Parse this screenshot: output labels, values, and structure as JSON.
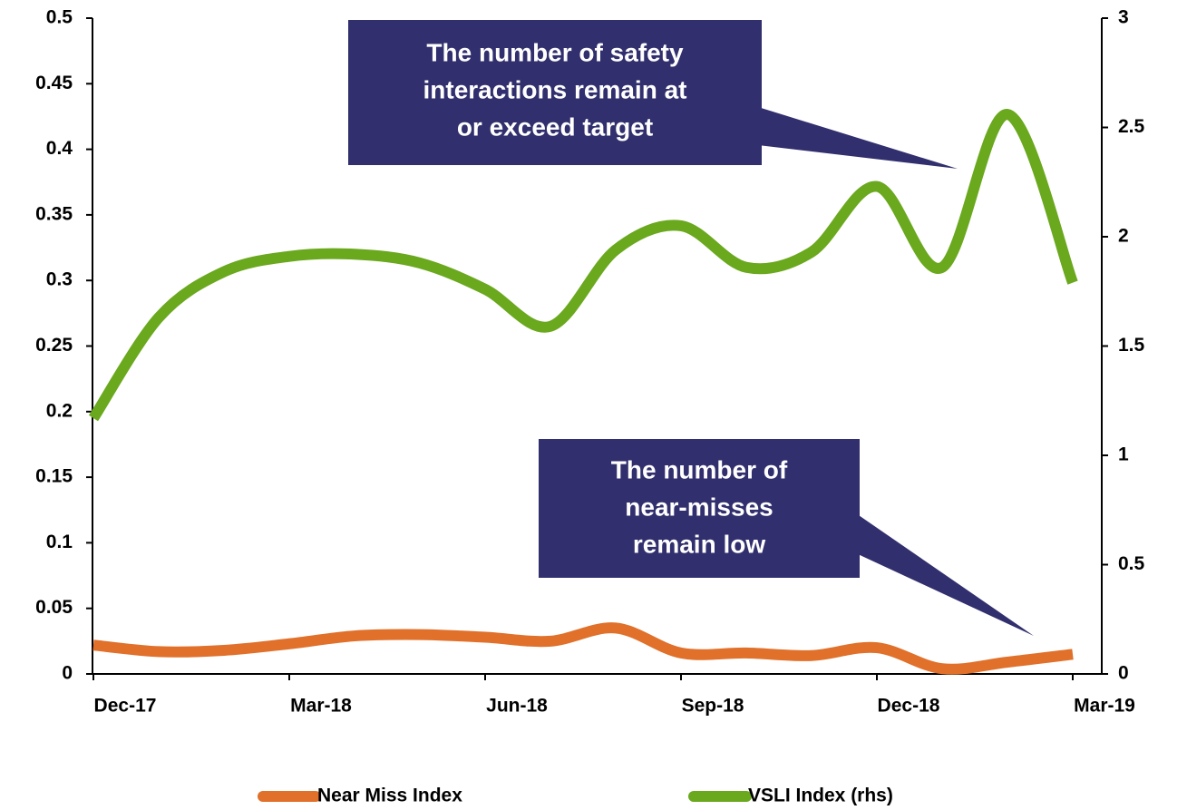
{
  "chart_data": {
    "type": "line",
    "categories": [
      "Dec-17",
      null,
      null,
      "Mar-18",
      null,
      null,
      "Jun-18",
      null,
      null,
      "Sep-18",
      null,
      null,
      "Dec-18",
      null,
      null,
      "Mar-19"
    ],
    "series": [
      {
        "name": "Near Miss Index",
        "color": "#e0702a",
        "axis": "y",
        "values": [
          0.022,
          0.017,
          0.018,
          0.023,
          0.029,
          0.03,
          0.028,
          0.025,
          0.035,
          0.016,
          0.016,
          0.014,
          0.02,
          0.004,
          0.009,
          0.015
        ]
      },
      {
        "name": "VSLI Index (rhs)",
        "color": "#6aa81e",
        "axis": "y2",
        "values": [
          1.17,
          1.63,
          1.84,
          1.91,
          1.92,
          1.88,
          1.76,
          1.59,
          1.94,
          2.05,
          1.86,
          1.93,
          2.23,
          1.86,
          2.56,
          1.79
        ]
      }
    ],
    "ylim": [
      0,
      0.5
    ],
    "yticks": [
      0,
      0.05,
      0.1,
      0.15,
      0.2,
      0.25,
      0.3,
      0.35,
      0.4,
      0.45,
      0.5
    ],
    "y2lim": [
      0,
      3
    ],
    "y2ticks": [
      0,
      0.5,
      1,
      1.5,
      2,
      2.5,
      3
    ],
    "legend": "bottom",
    "annotations": [
      {
        "lines": [
          "The number of safety",
          "interactions remain at",
          "or exceed target"
        ]
      },
      {
        "lines": [
          "The number of",
          "near-misses",
          "remain low"
        ]
      }
    ]
  }
}
